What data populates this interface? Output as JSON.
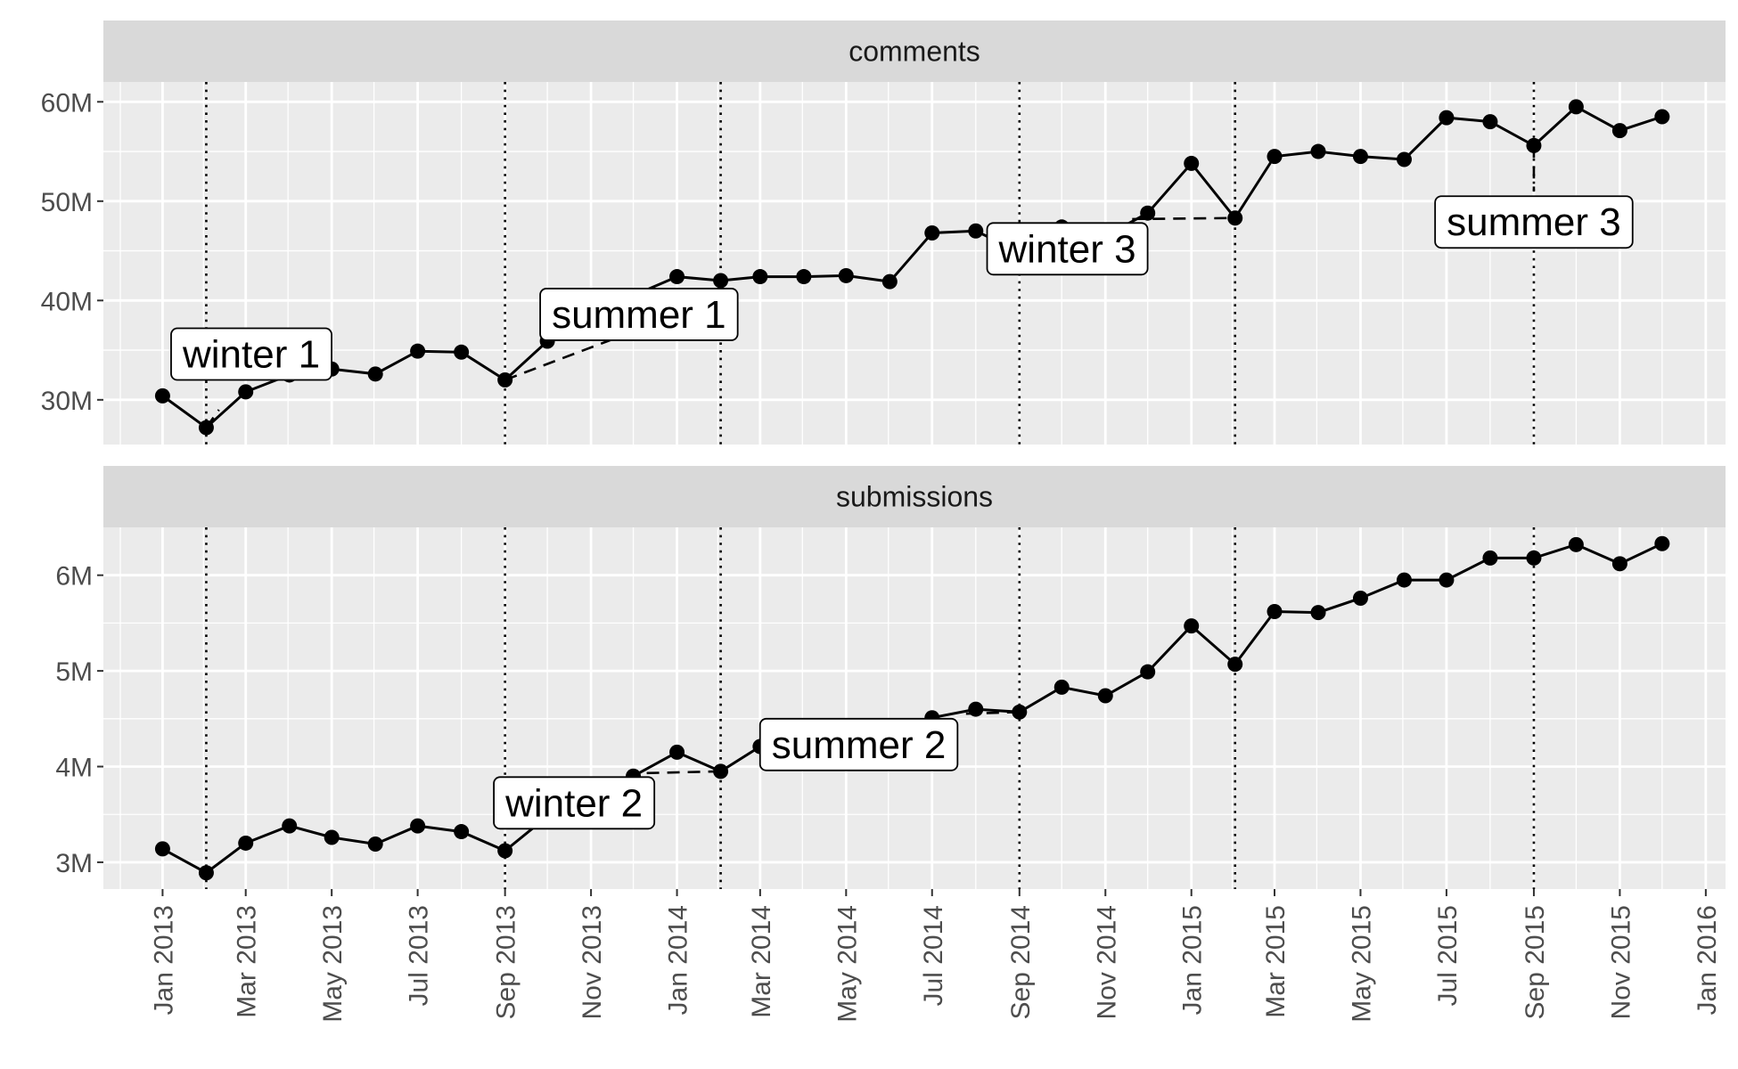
{
  "chart_data": {
    "type": "line",
    "x_axis": {
      "type": "date",
      "range": [
        "2012-11-20",
        "2016-01-15"
      ],
      "ticks": [
        "2013-01-01",
        "2013-03-01",
        "2013-05-01",
        "2013-07-01",
        "2013-09-01",
        "2013-11-01",
        "2014-01-01",
        "2014-03-01",
        "2014-05-01",
        "2014-07-01",
        "2014-09-01",
        "2014-11-01",
        "2015-01-01",
        "2015-03-01",
        "2015-05-01",
        "2015-07-01",
        "2015-09-01",
        "2015-11-01",
        "2016-01-01"
      ],
      "tick_labels": [
        "Jan 2013",
        "Mar 2013",
        "May 2013",
        "Jul 2013",
        "Sep 2013",
        "Nov 2013",
        "Jan 2014",
        "Mar 2014",
        "May 2014",
        "Jul 2014",
        "Sep 2014",
        "Nov 2014",
        "Jan 2015",
        "Mar 2015",
        "May 2015",
        "Jul 2015",
        "Sep 2015",
        "Nov 2015",
        "Jan 2016"
      ]
    },
    "grid": true,
    "facets": [
      {
        "strip_label": "comments",
        "ylim": [
          25500000,
          62000000
        ],
        "y_ticks": [
          30000000,
          40000000,
          50000000,
          60000000
        ],
        "y_tick_labels": [
          "30M",
          "40M",
          "50M",
          "60M"
        ],
        "points": [
          {
            "x": "2013-01-01",
            "y": 30400000
          },
          {
            "x": "2013-02-01",
            "y": 27200000
          },
          {
            "x": "2013-03-01",
            "y": 30800000
          },
          {
            "x": "2013-04-01",
            "y": 32500000
          },
          {
            "x": "2013-05-01",
            "y": 33100000
          },
          {
            "x": "2013-06-01",
            "y": 32600000
          },
          {
            "x": "2013-07-01",
            "y": 34900000
          },
          {
            "x": "2013-08-01",
            "y": 34800000
          },
          {
            "x": "2013-09-01",
            "y": 32000000
          },
          {
            "x": "2013-10-01",
            "y": 35900000
          },
          {
            "x": "2013-11-01",
            "y": 39200000
          },
          {
            "x": "2013-12-01",
            "y": 40500000
          },
          {
            "x": "2014-01-01",
            "y": 42400000
          },
          {
            "x": "2014-02-01",
            "y": 42000000
          },
          {
            "x": "2014-03-01",
            "y": 42400000
          },
          {
            "x": "2014-04-01",
            "y": 42400000
          },
          {
            "x": "2014-05-01",
            "y": 42500000
          },
          {
            "x": "2014-06-01",
            "y": 41900000
          },
          {
            "x": "2014-07-01",
            "y": 46800000
          },
          {
            "x": "2014-08-01",
            "y": 47000000
          },
          {
            "x": "2014-09-01",
            "y": 44900000
          },
          {
            "x": "2014-10-01",
            "y": 47400000
          },
          {
            "x": "2014-11-01",
            "y": 46500000
          },
          {
            "x": "2014-12-01",
            "y": 48800000
          },
          {
            "x": "2015-01-01",
            "y": 53800000
          },
          {
            "x": "2015-02-01",
            "y": 48300000
          },
          {
            "x": "2015-03-01",
            "y": 54500000
          },
          {
            "x": "2015-04-01",
            "y": 55000000
          },
          {
            "x": "2015-05-01",
            "y": 54500000
          },
          {
            "x": "2015-06-01",
            "y": 54200000
          },
          {
            "x": "2015-07-01",
            "y": 58400000
          },
          {
            "x": "2015-08-01",
            "y": 58000000
          },
          {
            "x": "2015-09-01",
            "y": 55600000
          },
          {
            "x": "2015-10-01",
            "y": 59500000
          },
          {
            "x": "2015-11-01",
            "y": 57100000
          },
          {
            "x": "2015-12-01",
            "y": 58500000
          }
        ],
        "vlines": [
          "2013-02-01",
          "2013-09-01",
          "2014-02-01",
          "2014-09-01",
          "2015-02-01",
          "2015-09-01"
        ],
        "dashed_segments": [
          {
            "from": {
              "x": "2013-02-01",
              "y": 27200000
            },
            "to": {
              "x": "2013-02-10",
              "y": 29000000
            }
          },
          {
            "from": {
              "x": "2013-09-01",
              "y": 32000000
            },
            "to": {
              "x": "2013-12-05",
              "y": 37100000
            }
          },
          {
            "from": {
              "x": "2014-11-20",
              "y": 48200000
            },
            "to": {
              "x": "2015-02-01",
              "y": 48300000
            }
          },
          {
            "from": {
              "x": "2015-09-01",
              "y": 55600000
            },
            "to": {
              "x": "2015-09-01",
              "y": 51100000
            }
          }
        ],
        "labels": [
          {
            "text": "winter 1",
            "x": "2013-03-05",
            "y": 34600000,
            "anchor": "middle"
          },
          {
            "text": "summer 1",
            "x": "2013-12-05",
            "y": 38600000,
            "anchor": "middle"
          },
          {
            "text": "winter 3",
            "x": "2014-10-05",
            "y": 45200000,
            "anchor": "middle"
          },
          {
            "text": "summer 3",
            "x": "2015-09-01",
            "y": 47900000,
            "anchor": "middle"
          }
        ]
      },
      {
        "strip_label": "submissions",
        "ylim": [
          2720000,
          6500000
        ],
        "y_ticks": [
          3000000,
          4000000,
          5000000,
          6000000
        ],
        "y_tick_labels": [
          "3M",
          "4M",
          "5M",
          "6M"
        ],
        "points": [
          {
            "x": "2013-01-01",
            "y": 3140000
          },
          {
            "x": "2013-02-01",
            "y": 2890000
          },
          {
            "x": "2013-03-01",
            "y": 3200000
          },
          {
            "x": "2013-04-01",
            "y": 3380000
          },
          {
            "x": "2013-05-01",
            "y": 3260000
          },
          {
            "x": "2013-06-01",
            "y": 3190000
          },
          {
            "x": "2013-07-01",
            "y": 3380000
          },
          {
            "x": "2013-08-01",
            "y": 3320000
          },
          {
            "x": "2013-09-01",
            "y": 3120000
          },
          {
            "x": "2013-10-01",
            "y": 3480000
          },
          {
            "x": "2013-11-01",
            "y": 3680000
          },
          {
            "x": "2013-12-01",
            "y": 3900000
          },
          {
            "x": "2014-01-01",
            "y": 4150000
          },
          {
            "x": "2014-02-01",
            "y": 3950000
          },
          {
            "x": "2014-03-01",
            "y": 4210000
          },
          {
            "x": "2014-04-01",
            "y": 4220000
          },
          {
            "x": "2014-05-01",
            "y": 4370000
          },
          {
            "x": "2014-06-01",
            "y": 4390000
          },
          {
            "x": "2014-07-01",
            "y": 4510000
          },
          {
            "x": "2014-08-01",
            "y": 4600000
          },
          {
            "x": "2014-09-01",
            "y": 4570000
          },
          {
            "x": "2014-10-01",
            "y": 4830000
          },
          {
            "x": "2014-11-01",
            "y": 4740000
          },
          {
            "x": "2014-12-01",
            "y": 4990000
          },
          {
            "x": "2015-01-01",
            "y": 5470000
          },
          {
            "x": "2015-02-01",
            "y": 5070000
          },
          {
            "x": "2015-03-01",
            "y": 5620000
          },
          {
            "x": "2015-04-01",
            "y": 5610000
          },
          {
            "x": "2015-05-01",
            "y": 5760000
          },
          {
            "x": "2015-06-01",
            "y": 5950000
          },
          {
            "x": "2015-07-01",
            "y": 5950000
          },
          {
            "x": "2015-08-01",
            "y": 6180000
          },
          {
            "x": "2015-09-01",
            "y": 6180000
          },
          {
            "x": "2015-10-01",
            "y": 6320000
          },
          {
            "x": "2015-11-01",
            "y": 6120000
          },
          {
            "x": "2015-12-01",
            "y": 6330000
          }
        ],
        "vlines": [
          "2013-02-01",
          "2013-09-01",
          "2014-02-01",
          "2014-09-01",
          "2015-02-01",
          "2015-09-01"
        ],
        "dashed_segments": [
          {
            "from": {
              "x": "2014-02-01",
              "y": 3950000
            },
            "to": {
              "x": "2013-12-05",
              "y": 3930000
            }
          },
          {
            "from": {
              "x": "2014-09-01",
              "y": 4570000
            },
            "to": {
              "x": "2014-07-20",
              "y": 4550000
            }
          }
        ],
        "labels": [
          {
            "text": "winter 2",
            "x": "2013-10-20",
            "y": 3620000,
            "anchor": "middle"
          },
          {
            "text": "summer 2",
            "x": "2014-05-10",
            "y": 4230000,
            "anchor": "middle"
          }
        ]
      }
    ]
  }
}
